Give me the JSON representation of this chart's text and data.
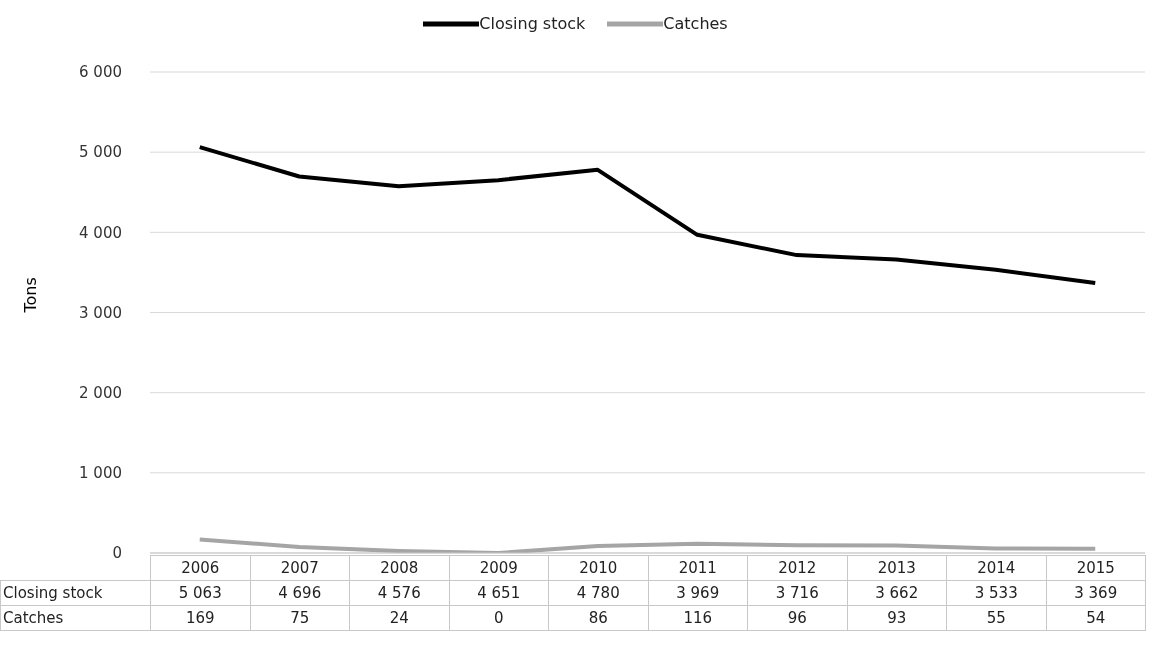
{
  "chart_data": {
    "type": "line",
    "ylabel": "Tons",
    "categories": [
      "2006",
      "2007",
      "2008",
      "2009",
      "2010",
      "2011",
      "2012",
      "2013",
      "2014",
      "2015"
    ],
    "series": [
      {
        "name": "Closing stock",
        "color": "#000000",
        "values": [
          5063,
          4696,
          4576,
          4651,
          4780,
          3969,
          3716,
          3662,
          3533,
          3369
        ],
        "value_labels": [
          "5 063",
          "4 696",
          "4 576",
          "4 651",
          "4 780",
          "3 969",
          "3 716",
          "3 662",
          "3 533",
          "3 369"
        ]
      },
      {
        "name": "Catches",
        "color": "#a5a5a5",
        "values": [
          169,
          75,
          24,
          0,
          86,
          116,
          96,
          93,
          55,
          54
        ],
        "value_labels": [
          "169",
          "75",
          "24",
          "0",
          "86",
          "116",
          "96",
          "93",
          "55",
          "54"
        ]
      }
    ],
    "ylim": [
      0,
      6000
    ],
    "yticks": [
      {
        "value": 0,
        "label": "0"
      },
      {
        "value": 1000,
        "label": "1 000"
      },
      {
        "value": 2000,
        "label": "2 000"
      },
      {
        "value": 3000,
        "label": "3 000"
      },
      {
        "value": 4000,
        "label": "4 000"
      },
      {
        "value": 5000,
        "label": "5 000"
      },
      {
        "value": 6000,
        "label": "6 000"
      }
    ],
    "grid": "y",
    "legend": "top",
    "marker": "none",
    "line_style": "solid"
  }
}
